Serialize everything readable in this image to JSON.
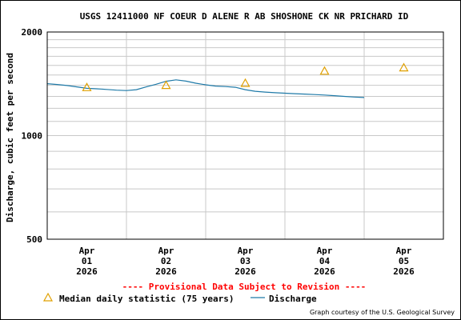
{
  "chart_data": {
    "type": "line",
    "title": "USGS 12411000 NF COEUR D ALENE R AB SHOSHONE CK NR PRICHARD ID",
    "ylabel": "Discharge, cubic feet per second",
    "y_scale": "log",
    "ylim": [
      500,
      2000
    ],
    "y_ticks": [
      "500",
      "1000",
      "2000"
    ],
    "xlim": [
      "2026-03-31T12:00",
      "2026-04-05T12:00"
    ],
    "x_ticks": [
      {
        "date": "2026-04-01T00:00",
        "lines": [
          "Apr",
          "01",
          "2026"
        ]
      },
      {
        "date": "2026-04-02T00:00",
        "lines": [
          "Apr",
          "02",
          "2026"
        ]
      },
      {
        "date": "2026-04-03T00:00",
        "lines": [
          "Apr",
          "03",
          "2026"
        ]
      },
      {
        "date": "2026-04-04T00:00",
        "lines": [
          "Apr",
          "04",
          "2026"
        ]
      },
      {
        "date": "2026-04-05T00:00",
        "lines": [
          "Apr",
          "05",
          "2026"
        ]
      }
    ],
    "grid": true,
    "series": [
      {
        "name": "Discharge",
        "color": "#1f7aa8",
        "points": [
          [
            "2026-03-31T12:00",
            1415
          ],
          [
            "2026-03-31T15:00",
            1408
          ],
          [
            "2026-03-31T18:00",
            1398
          ],
          [
            "2026-03-31T21:00",
            1385
          ],
          [
            "2026-04-01T00:00",
            1372
          ],
          [
            "2026-04-01T03:00",
            1368
          ],
          [
            "2026-04-01T06:00",
            1362
          ],
          [
            "2026-04-01T09:00",
            1355
          ],
          [
            "2026-04-01T12:00",
            1352
          ],
          [
            "2026-04-01T15:00",
            1360
          ],
          [
            "2026-04-01T18:00",
            1385
          ],
          [
            "2026-04-01T21:00",
            1410
          ],
          [
            "2026-04-02T00:00",
            1438
          ],
          [
            "2026-04-02T03:00",
            1452
          ],
          [
            "2026-04-02T06:00",
            1440
          ],
          [
            "2026-04-02T09:00",
            1420
          ],
          [
            "2026-04-02T12:00",
            1405
          ],
          [
            "2026-04-02T15:00",
            1393
          ],
          [
            "2026-04-02T18:00",
            1388
          ],
          [
            "2026-04-02T21:00",
            1382
          ],
          [
            "2026-04-03T00:00",
            1360
          ],
          [
            "2026-04-03T03:00",
            1345
          ],
          [
            "2026-04-03T06:00",
            1338
          ],
          [
            "2026-04-03T09:00",
            1332
          ],
          [
            "2026-04-03T12:00",
            1328
          ],
          [
            "2026-04-03T15:00",
            1324
          ],
          [
            "2026-04-03T18:00",
            1320
          ],
          [
            "2026-04-03T21:00",
            1316
          ],
          [
            "2026-04-04T00:00",
            1312
          ],
          [
            "2026-04-04T03:00",
            1306
          ],
          [
            "2026-04-04T06:00",
            1300
          ],
          [
            "2026-04-04T09:00",
            1294
          ],
          [
            "2026-04-04T12:00",
            1290
          ]
        ]
      },
      {
        "name": "Median daily statistic (75 years)",
        "color": "#e0a000",
        "marker": "triangle",
        "points": [
          [
            "2026-04-01T00:00",
            1380
          ],
          [
            "2026-04-02T00:00",
            1400
          ],
          [
            "2026-04-03T00:00",
            1420
          ],
          [
            "2026-04-04T00:00",
            1540
          ],
          [
            "2026-04-05T00:00",
            1575
          ]
        ]
      }
    ],
    "legend": {
      "placement": "bottom",
      "median_label": "Median daily statistic (75 years)",
      "discharge_label": "Discharge"
    },
    "annotations": {
      "provisional": "---- Provisional Data Subject to Revision ----",
      "provisional_color": "#ff0000",
      "credit": "Graph courtesy of the U.S. Geological Survey"
    }
  }
}
